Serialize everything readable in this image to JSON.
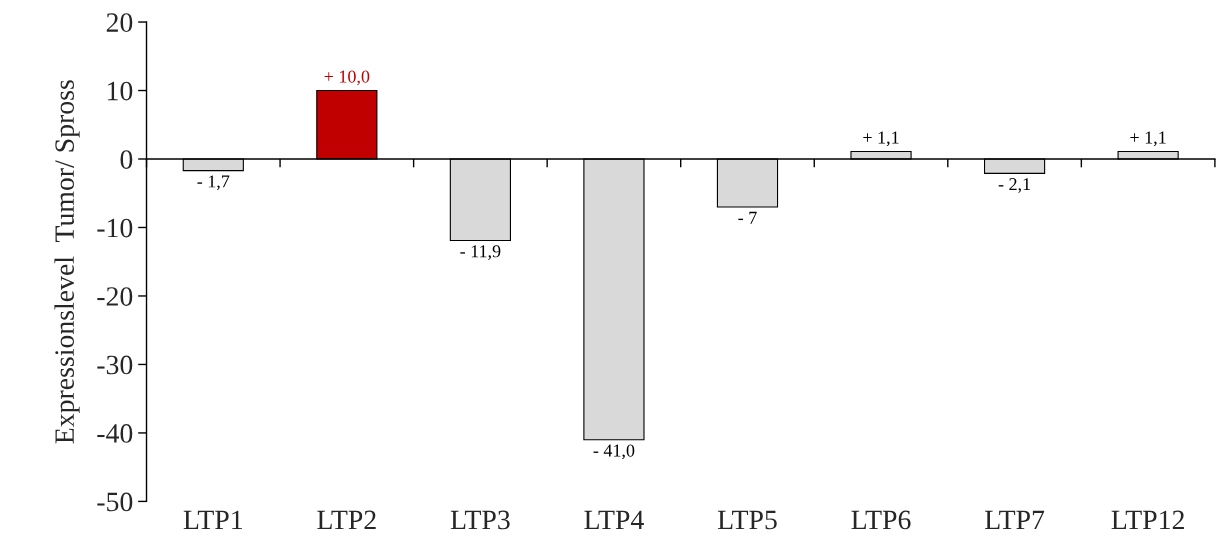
{
  "chart_data": {
    "type": "bar",
    "ylabel": "Expressionslevel  Tumor/ Spross",
    "categories": [
      "LTP1",
      "LTP2",
      "LTP3",
      "LTP4",
      "LTP5",
      "LTP6",
      "LTP7",
      "LTP12"
    ],
    "values": [
      -1.7,
      10.0,
      -11.9,
      -41.0,
      -7,
      1.1,
      -2.1,
      1.1
    ],
    "colors": [
      "#d9d9d9",
      "#c00000",
      "#d9d9d9",
      "#d9d9d9",
      "#d9d9d9",
      "#d9d9d9",
      "#d9d9d9",
      "#d9d9d9"
    ],
    "value_labels": [
      "- 1,7",
      "+ 10,0",
      "- 11,9",
      "- 41,0",
      "- 7",
      "+ 1,1",
      "- 2,1",
      "+ 1,1"
    ],
    "ylim": [
      -50,
      20
    ],
    "yticks": [
      -50,
      -40,
      -30,
      -20,
      -10,
      0,
      10,
      20
    ]
  }
}
